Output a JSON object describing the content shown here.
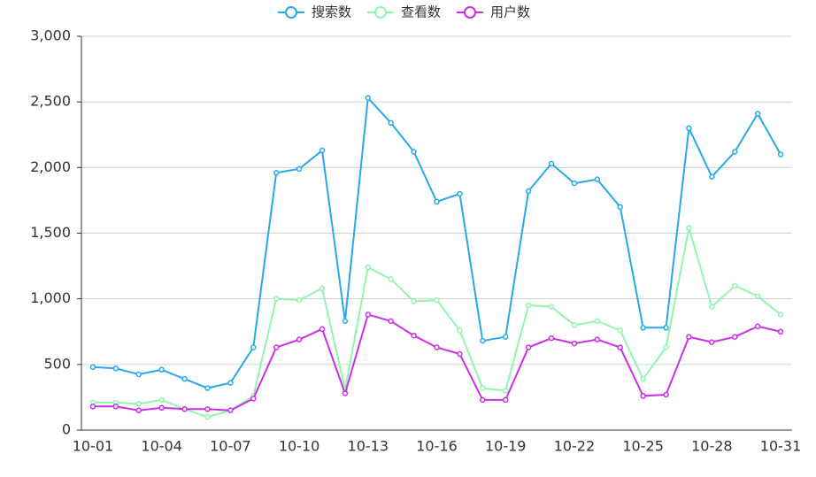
{
  "chart_data": {
    "type": "line",
    "categories": [
      "10-01",
      null,
      null,
      "10-04",
      null,
      null,
      "10-07",
      null,
      null,
      "10-10",
      null,
      null,
      "10-13",
      null,
      null,
      "10-16",
      null,
      null,
      "10-19",
      null,
      null,
      "10-22",
      null,
      null,
      "10-25",
      null,
      null,
      "10-28",
      null,
      null,
      "10-31"
    ],
    "series": [
      {
        "name": "搜索数",
        "color": "#27a9e8",
        "values": [
          480,
          470,
          425,
          460,
          390,
          320,
          360,
          630,
          1960,
          1990,
          2130,
          830,
          2530,
          2340,
          2120,
          1740,
          1800,
          680,
          710,
          1820,
          2030,
          1880,
          1910,
          1700,
          780,
          780,
          2300,
          1930,
          2120,
          2410,
          2100
        ]
      },
      {
        "name": "查看数",
        "color": "#91f5ad",
        "values": [
          210,
          210,
          200,
          230,
          160,
          100,
          150,
          260,
          1000,
          990,
          1080,
          310,
          1240,
          1150,
          980,
          990,
          760,
          320,
          300,
          950,
          940,
          800,
          830,
          760,
          390,
          630,
          1540,
          940,
          1100,
          1020,
          880
        ]
      },
      {
        "name": "用户数",
        "color": "#cc2ee8",
        "values": [
          180,
          180,
          150,
          170,
          160,
          160,
          150,
          240,
          630,
          690,
          770,
          280,
          880,
          830,
          720,
          630,
          580,
          230,
          230,
          630,
          700,
          660,
          690,
          630,
          260,
          270,
          710,
          670,
          710,
          790,
          750
        ]
      }
    ],
    "ylim": [
      0,
      3000
    ],
    "yticks": [
      0,
      500,
      {
        "value": 1000,
        "label": "1,000"
      },
      {
        "value": 1500,
        "label": "1,500"
      },
      {
        "value": 2000,
        "label": "2,000"
      },
      {
        "value": 2500,
        "label": "2,500"
      },
      {
        "value": 3000,
        "label": "3,000"
      }
    ],
    "grid": true
  }
}
